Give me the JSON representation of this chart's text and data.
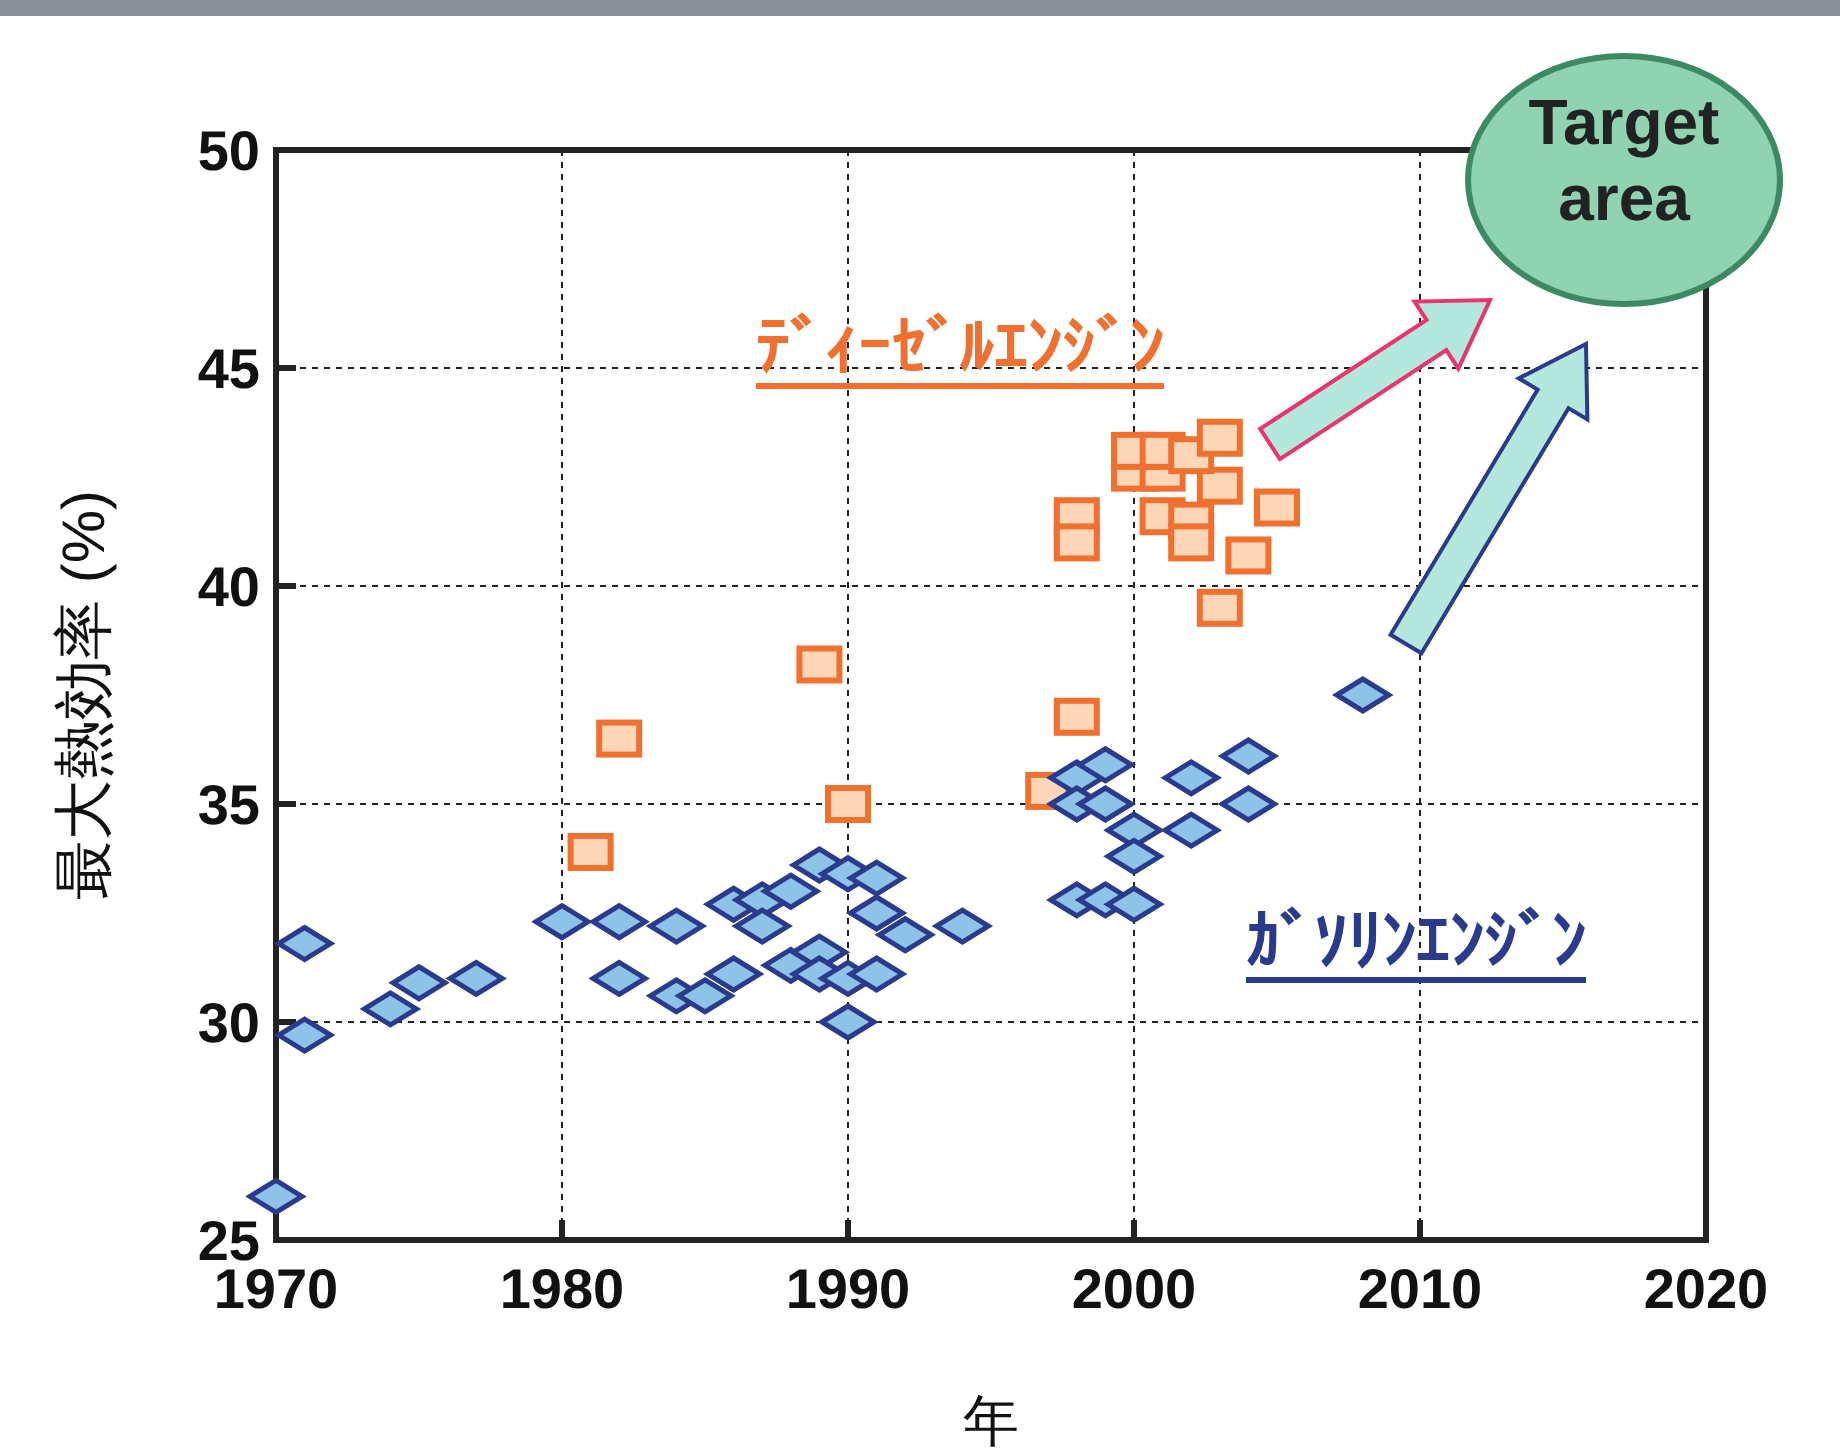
{
  "chart_data": {
    "type": "scatter",
    "xlabel": "年",
    "ylabel": "最大熱効率 (%)",
    "xlim": [
      1970,
      2020
    ],
    "xticks": [
      1970,
      1980,
      1990,
      2000,
      2010,
      2020
    ],
    "ylim": [
      25,
      50
    ],
    "yticks": [
      25,
      30,
      35,
      40,
      45,
      50
    ],
    "grid": true,
    "annotations": [
      "Target area"
    ],
    "series": [
      {
        "name": "ﾃﾞｨｰｾﾞﾙｴﾝｼﾞﾝ",
        "color": "#f07030",
        "marker": "square",
        "x": [
          1981,
          1982,
          1989,
          1990,
          1997,
          1998,
          1998,
          1998,
          2000,
          2001,
          2001,
          2002,
          2002,
          2003,
          2003,
          2004,
          2005,
          2000,
          2001,
          2002,
          2003
        ],
        "values": [
          33.9,
          36.5,
          38.2,
          35.0,
          35.3,
          37.0,
          41.6,
          41.0,
          42.6,
          42.6,
          41.6,
          41.5,
          41.0,
          42.3,
          39.5,
          40.7,
          41.8,
          43.1,
          43.1,
          43.0,
          43.4
        ]
      },
      {
        "name": "ｶﾞｿﾘﾝｴﾝｼﾞﾝ",
        "color": "#2a3a8c",
        "marker": "diamond",
        "x": [
          1970,
          1971,
          1971,
          1974,
          1975,
          1977,
          1980,
          1982,
          1982,
          1984,
          1984,
          1985,
          1986,
          1986,
          1987,
          1987,
          1988,
          1988,
          1989,
          1989,
          1989,
          1990,
          1990,
          1990,
          1991,
          1991,
          1991,
          1992,
          1994,
          1998,
          1998,
          1999,
          1999,
          2000,
          2000,
          1998,
          1999,
          2000,
          2002,
          2002,
          2004,
          2004,
          2008
        ],
        "values": [
          26.0,
          31.8,
          29.7,
          30.3,
          30.9,
          31.0,
          32.3,
          32.3,
          31.0,
          32.2,
          30.6,
          30.6,
          31.1,
          32.7,
          32.8,
          32.2,
          33.0,
          31.3,
          33.6,
          31.6,
          31.1,
          33.4,
          31.0,
          30.0,
          33.3,
          32.5,
          31.1,
          32.0,
          32.2,
          35.6,
          35.0,
          35.9,
          35.0,
          34.4,
          33.8,
          32.8,
          32.8,
          32.7,
          35.6,
          34.4,
          36.1,
          35.0,
          37.5
        ]
      }
    ]
  }
}
